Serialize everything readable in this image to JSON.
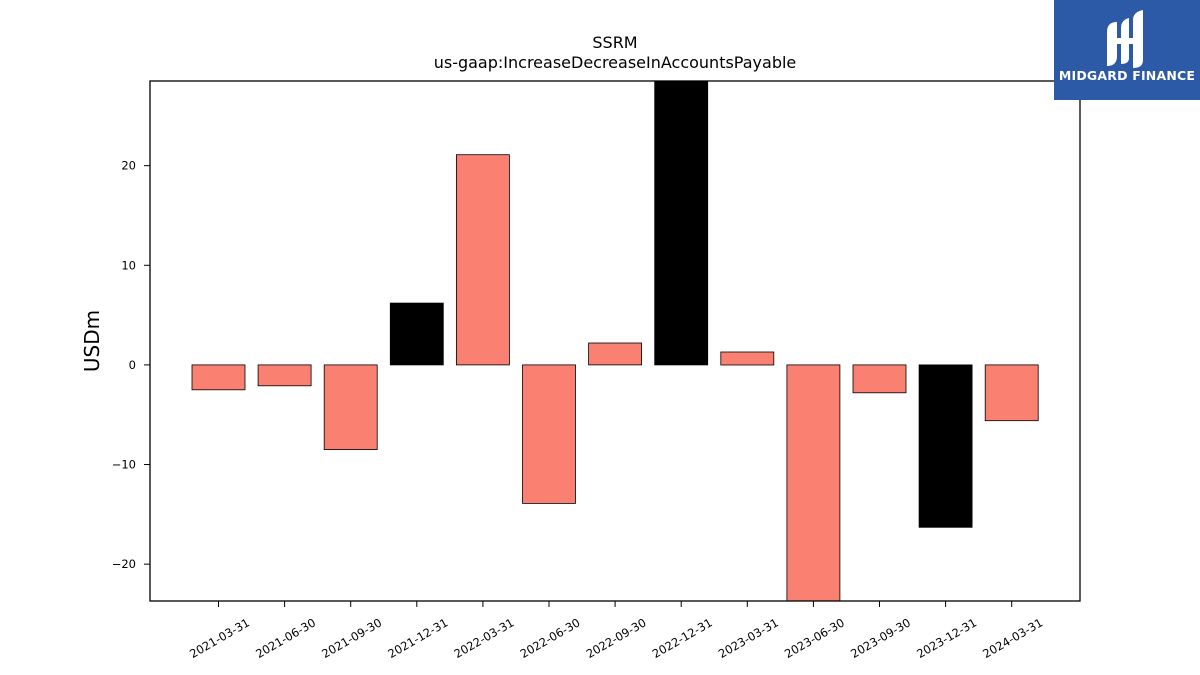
{
  "chart_data": {
    "type": "bar",
    "title": "SSRM",
    "subtitle": "us-gaap:IncreaseDecreaseInAccountsPayable",
    "xlabel": "",
    "ylabel": "USDm",
    "ylim": [
      -23.7,
      28.5
    ],
    "yticks": [
      -20,
      -10,
      0,
      10,
      20
    ],
    "ytick_labels": [
      "−20",
      "−10",
      "0",
      "10",
      "20"
    ],
    "grid": false,
    "categories": [
      "2021-03-31",
      "2021-06-30",
      "2021-09-30",
      "2021-12-31",
      "2022-03-31",
      "2022-06-30",
      "2022-09-30",
      "2022-12-31",
      "2023-03-31",
      "2023-06-30",
      "2023-09-30",
      "2023-12-31",
      "2024-03-31"
    ],
    "values": [
      -2.5,
      -2.1,
      -8.5,
      6.2,
      21.1,
      -13.9,
      2.2,
      28.5,
      1.3,
      -23.7,
      -2.8,
      -16.3,
      -5.6
    ],
    "bar_colors": [
      "#fa8072",
      "#fa8072",
      "#fa8072",
      "#000000",
      "#fa8072",
      "#fa8072",
      "#fa8072",
      "#000000",
      "#fa8072",
      "#fa8072",
      "#fa8072",
      "#000000",
      "#fa8072"
    ]
  },
  "logo": {
    "text": "MIDGARD FINANCE",
    "icon": "midgard-logo-mark",
    "background": "#2d5aa6"
  }
}
